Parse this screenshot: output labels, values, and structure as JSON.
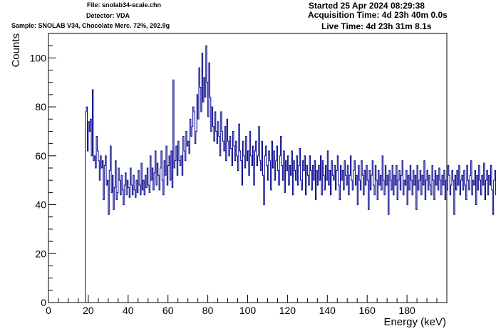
{
  "header": {
    "file": "File: snolab34-scale.chn",
    "detector": "Detector: VDA",
    "sample": "Sample: SNOLAB V34, Chocolate Merc. 72%, 202.9g",
    "started": "Started 25 Apr 2024 08:29:38",
    "acquisition": "Acquisition Time: 4d 23h 40m 0.0s",
    "live": "Live Time: 4d 23h 31m 8.1s"
  },
  "chart_data": {
    "type": "line",
    "title": "",
    "xlabel": "Energy (keV)",
    "ylabel": "Counts",
    "xlim": [
      0,
      200
    ],
    "ylim": [
      0,
      110
    ],
    "x_ticks": [
      0,
      20,
      40,
      60,
      80,
      100,
      120,
      140,
      160,
      180
    ],
    "y_ticks": [
      0,
      20,
      40,
      60,
      80,
      100
    ],
    "grid": false,
    "legend": "none",
    "line_color": "#00008b",
    "series": [
      {
        "x_start": 18.0,
        "x_step": 0.5,
        "values": [
          0,
          78,
          80,
          62,
          74,
          70,
          75,
          60,
          87,
          58,
          60,
          55,
          68,
          62,
          58,
          50,
          60,
          55,
          58,
          42,
          56,
          60,
          48,
          50,
          36,
          54,
          64,
          45,
          52,
          38,
          47,
          58,
          42,
          45,
          55,
          50,
          44,
          52,
          46,
          40,
          48,
          53,
          44,
          50,
          47,
          43,
          55,
          48,
          44,
          52,
          46,
          43,
          50,
          45,
          54,
          48,
          44,
          57,
          46,
          50,
          44,
          52,
          47,
          55,
          48,
          45,
          60,
          50,
          55,
          46,
          53,
          62,
          48,
          57,
          52,
          46,
          55,
          62,
          50,
          44,
          58,
          52,
          64,
          48,
          56,
          60,
          50,
          62,
          47,
          91,
          55,
          58,
          64,
          52,
          66,
          58,
          56,
          60,
          52,
          68,
          62,
          58,
          70,
          64,
          66,
          61,
          75,
          68,
          72,
          80,
          78,
          65,
          70,
          85,
          75,
          96,
          88,
          78,
          102,
          82,
          92,
          84,
          105,
          90,
          76,
          98,
          84,
          70,
          80,
          72,
          66,
          78,
          70,
          65,
          74,
          68,
          60,
          78,
          70,
          66,
          62,
          72,
          58,
          75,
          66,
          60,
          68,
          63,
          56,
          70,
          64,
          58,
          66,
          60,
          54,
          73,
          62,
          58,
          48,
          66,
          60,
          55,
          68,
          58,
          62,
          52,
          70,
          60,
          56,
          64,
          48,
          62,
          66,
          56,
          60,
          72,
          58,
          54,
          66,
          52,
          40,
          60,
          64,
          56,
          50,
          62,
          58,
          46,
          66,
          55,
          62,
          50,
          58,
          64,
          54,
          48,
          60,
          68,
          56,
          50,
          62,
          45,
          58,
          54,
          60,
          48,
          56,
          52,
          62,
          44,
          58,
          54,
          50,
          60,
          48,
          56,
          63,
          50,
          46,
          58,
          54,
          60,
          44,
          56,
          52,
          48,
          60,
          54,
          46,
          56,
          50,
          58,
          42,
          54,
          48,
          56,
          50,
          60,
          44,
          58,
          52,
          46,
          56,
          50,
          62,
          48,
          54,
          44,
          58,
          52,
          50,
          56,
          46,
          54,
          60,
          48,
          42,
          56,
          50,
          54,
          46,
          58,
          52,
          48,
          56,
          44,
          52,
          60,
          50,
          46,
          54,
          58,
          48,
          52,
          40,
          56,
          50,
          46,
          58,
          52,
          44,
          54,
          48,
          56,
          50,
          38,
          54,
          46,
          52,
          58,
          48,
          44,
          56,
          50,
          42,
          54,
          48,
          52,
          46,
          60,
          50,
          44,
          56,
          48,
          52,
          36,
          54,
          50,
          46,
          56,
          44,
          52,
          48,
          56,
          42,
          50,
          54,
          46,
          52,
          58,
          44,
          50,
          48,
          54,
          40,
          52,
          46,
          56,
          50,
          44,
          54,
          48,
          52,
          38,
          56,
          46,
          50,
          54,
          44,
          52,
          48,
          58,
          42,
          50,
          54,
          46,
          52,
          48,
          44,
          56,
          50,
          42,
          54,
          48,
          52,
          46,
          55,
          50,
          44,
          52,
          48,
          54,
          42,
          50,
          46,
          56,
          52,
          44,
          48,
          54,
          50,
          36,
          52,
          46,
          54,
          48,
          56,
          44,
          50,
          52,
          46,
          54,
          48,
          42,
          56,
          50,
          46,
          52,
          58,
          44,
          50,
          48,
          54,
          40,
          52,
          46,
          56,
          50,
          44,
          52,
          48,
          57,
          42,
          50,
          54,
          44,
          52,
          48,
          56,
          46,
          36,
          50,
          54,
          44,
          52,
          48,
          56,
          50,
          46
        ]
      }
    ]
  }
}
